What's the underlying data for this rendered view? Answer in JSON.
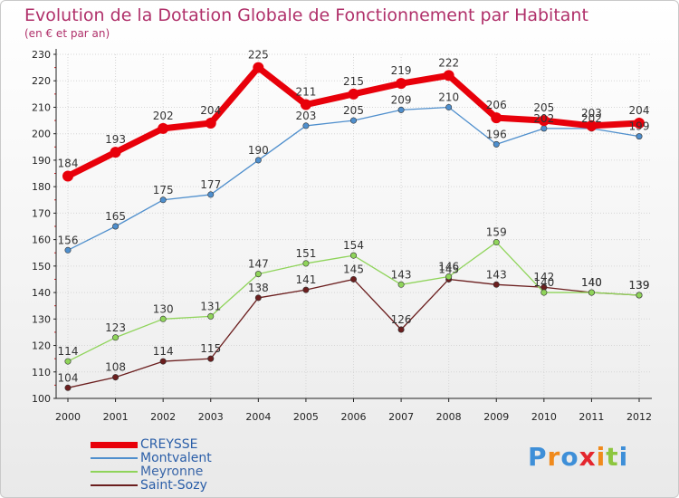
{
  "title": "Evolution de la Dotation Globale de Fonctionnement par Habitant",
  "subtitle": "(en € et par an)",
  "colors": {
    "title": "#b0306a",
    "axis": "#222222",
    "grid": "#d6d6d6"
  },
  "chart_data": {
    "type": "line",
    "title": "Evolution de la Dotation Globale de Fonctionnement par Habitant",
    "subtitle": "(en € et par an)",
    "xlabel": "",
    "ylabel": "",
    "ylim": [
      100,
      230
    ],
    "yticks": [
      100,
      110,
      120,
      130,
      140,
      150,
      160,
      170,
      180,
      190,
      200,
      210,
      220,
      230
    ],
    "grid": true,
    "legend_position": "bottom-left",
    "x": [
      "2000",
      "2001",
      "2002",
      "2003",
      "2004",
      "2005",
      "2006",
      "2007",
      "2008",
      "2009",
      "2010",
      "2011",
      "2012"
    ],
    "series": [
      {
        "name": "CREYSSE",
        "color": "#e8000a",
        "values": [
          184,
          193,
          202,
          204,
          225,
          211,
          215,
          219,
          222,
          206,
          205,
          203,
          204
        ],
        "labels": [
          "184",
          "193",
          "202",
          "204",
          "225",
          "211",
          "215",
          "219",
          "222",
          "206",
          "205",
          "203",
          "204"
        ]
      },
      {
        "name": "Montvalent",
        "color": "#4f8fcd",
        "values": [
          156,
          165,
          175,
          177,
          190,
          203,
          205,
          209,
          210,
          196,
          202,
          202,
          199
        ],
        "labels": [
          "156",
          "165",
          "175",
          "177",
          "190",
          "203",
          "205",
          "209",
          "210",
          "196",
          "202",
          "202",
          "199"
        ]
      },
      {
        "name": "Meyronne",
        "color": "#8fd45a",
        "values": [
          114,
          123,
          130,
          131,
          147,
          151,
          154,
          143,
          146,
          159,
          140,
          140,
          139
        ],
        "labels": [
          "114",
          "123",
          "130",
          "131",
          "147",
          "151",
          "154",
          "143",
          "146",
          "159",
          "140",
          "140",
          "139"
        ]
      },
      {
        "name": "Saint-Sozy",
        "color": "#6b1e1e",
        "values": [
          104,
          108,
          114,
          115,
          138,
          141,
          145,
          126,
          145,
          143,
          142,
          140,
          139
        ],
        "labels": [
          "104",
          "108",
          "114",
          "115",
          "138",
          "141",
          "145",
          "126",
          "145",
          "143",
          "142",
          "140",
          "139"
        ]
      }
    ]
  },
  "logo": {
    "text": "Proxiti",
    "letters": [
      "P",
      "r",
      "o",
      "x",
      "i",
      "t",
      "i"
    ],
    "colors": [
      "#3e8fd8",
      "#f08a1c",
      "#3e8fd8",
      "#e4262e",
      "#f08a1c",
      "#8dc63f",
      "#3e8fd8"
    ]
  }
}
